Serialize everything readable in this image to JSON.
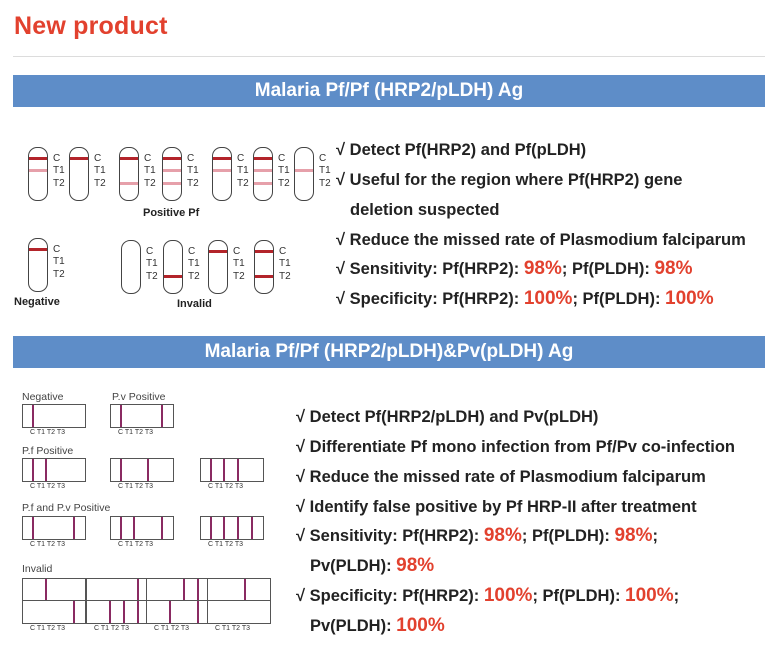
{
  "title": "New product",
  "section1": {
    "banner": "Malaria Pf/Pf (HRP2/pLDH) Ag",
    "line_labels": [
      "C",
      "T1",
      "T2"
    ],
    "positive_caption": "Positive Pf",
    "negative_caption": "Negative",
    "invalid_caption": "Invalid",
    "bullets": [
      {
        "check": "√",
        "text": "Detect Pf(HRP2) and Pf(pLDH)"
      },
      {
        "check": "√",
        "text": "Useful for the region where Pf(HRP2) gene"
      },
      {
        "check": "",
        "text": "deletion suspected"
      },
      {
        "check": "√",
        "text": "Reduce the missed rate of Plasmodium falciparum"
      }
    ],
    "sensitivity": {
      "check": "√",
      "label": "Sensitivity: Pf(HRP2): ",
      "v1": "98%",
      "mid": "; Pf(PLDH): ",
      "v2": "98%"
    },
    "specificity": {
      "check": "√",
      "label": "Specificity: Pf(HRP2): ",
      "v1": "100%",
      "mid": "; Pf(PLDH): ",
      "v2": "100%"
    }
  },
  "section2": {
    "banner": "Malaria Pf/Pf (HRP2/pLDH)&Pv(pLDH) Ag",
    "group_labels": {
      "negative": "Negative",
      "pv_positive": "P.v Positive",
      "pf_positive": "P.f Positive",
      "pf_pv_positive": "P.f and P.v Positive",
      "invalid": "Invalid"
    },
    "strip_label": "C   T1   T2   T3",
    "bullets": [
      {
        "check": "√",
        "text": "Detect Pf(HRP2/pLDH) and Pv(pLDH)"
      },
      {
        "check": "√",
        "text": "Differentiate Pf mono infection from Pf/Pv co-infection"
      },
      {
        "check": "√",
        "text": "Reduce the missed rate of Plasmodium falciparum"
      },
      {
        "check": "√",
        "text": "Identify false positive by Pf HRP-II after treatment"
      }
    ],
    "sensitivity": {
      "check": "√",
      "label": "Sensitivity: Pf(HRP2): ",
      "v1": "98%",
      "mid": "; Pf(PLDH): ",
      "v2": "98%",
      "tail": ";",
      "line2": "Pv(PLDH): ",
      "v3": "98%"
    },
    "specificity": {
      "check": "√",
      "label": "Specificity: Pf(HRP2): ",
      "v1": "100%",
      "mid": "; Pf(PLDH): ",
      "v2": "100%",
      "tail": ";",
      "line2": "Pv(PLDH): ",
      "v3": "100%"
    }
  },
  "colors": {
    "accent_red": "#e2412e",
    "banner_blue": "#5e8dc8",
    "line_dark": "#b3242a",
    "line_light": "#e6a0aa",
    "strip_bar": "#8a2a62"
  }
}
